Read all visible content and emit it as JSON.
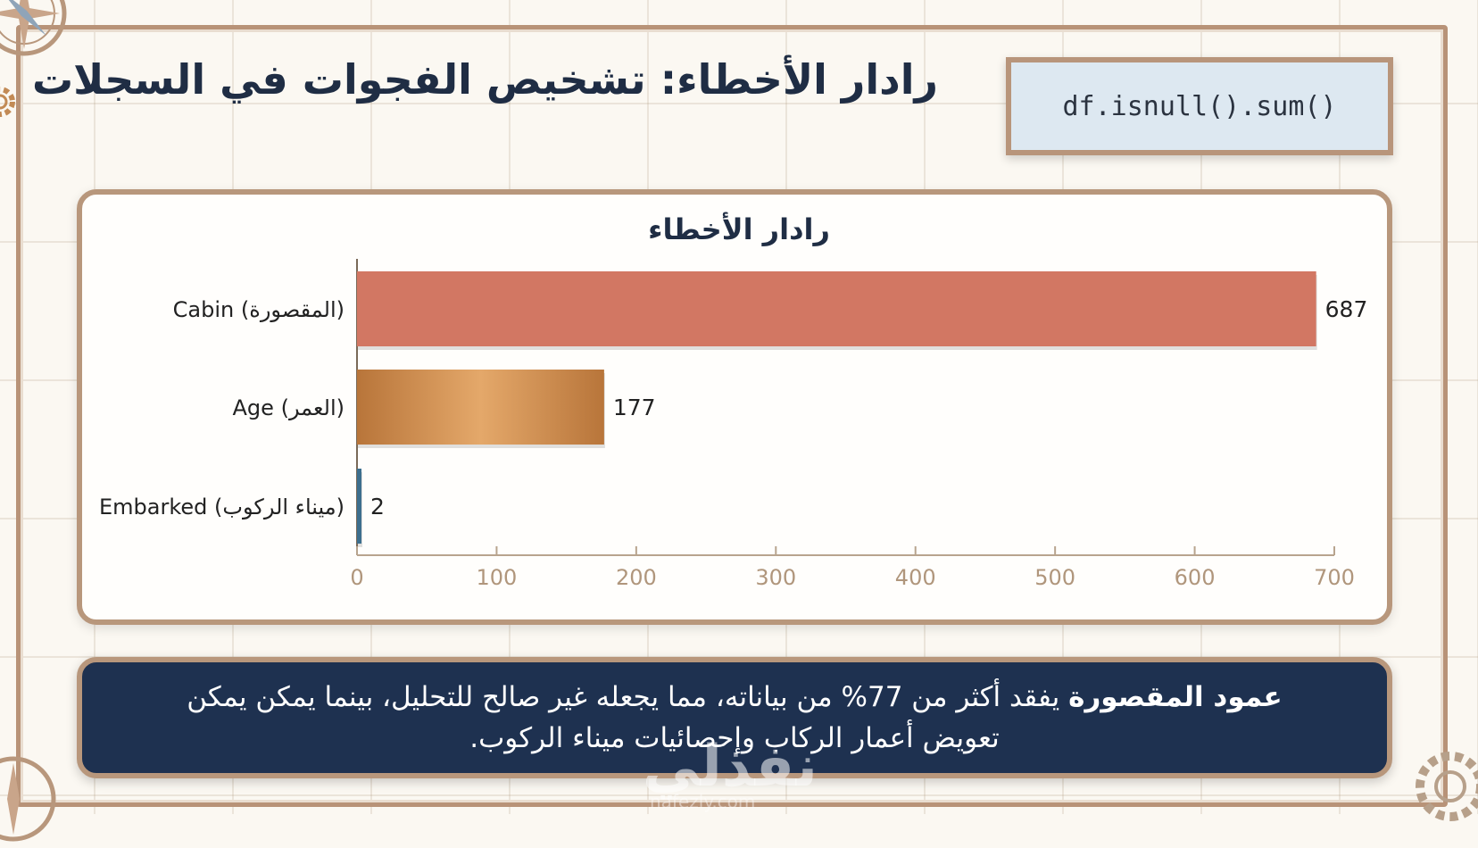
{
  "page": {
    "title": "رادار الأخطاء: تشخيص الفجوات في السجلات",
    "code": "df.isnull().sum()"
  },
  "chart_data": {
    "type": "bar",
    "orientation": "horizontal",
    "title": "رادار الأخطاء",
    "categories": [
      "Cabin (المقصورة)",
      "Age (العمر)",
      "Embarked (ميناء الركوب)"
    ],
    "values": [
      687,
      177,
      2
    ],
    "xlim": [
      0,
      700
    ],
    "xticks": [
      0,
      100,
      200,
      300,
      400,
      500,
      600,
      700
    ],
    "xlabel": "",
    "ylabel": "",
    "grid": false,
    "colors": [
      "#d27763",
      "#c98a4e",
      "#3d6f8e"
    ]
  },
  "note": {
    "bold": "عمود المقصورة",
    "rest": " يفقد أكثر من 77% من بياناته، مما يجعله غير صالح للتحليل، بينما يمكن يمكن تعويض أعمار الركاب وإحصائيات ميناء الركوب."
  },
  "watermark": {
    "text": "نفذلي",
    "sub": "nafezly.com"
  },
  "colors": {
    "frame": "#b8977c",
    "title": "#1f2d44",
    "note_bg": "#1e3150",
    "code_bg": "#dde8f1"
  }
}
